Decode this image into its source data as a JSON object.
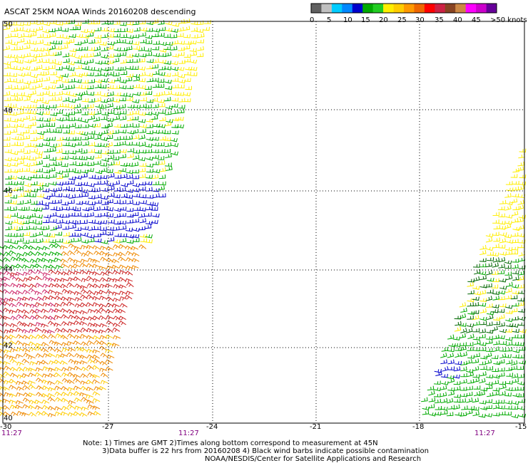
{
  "title": "ASCAT 25KM NOAA Winds 20160208 descending",
  "legend": {
    "labels": [
      "0",
      "5",
      "10",
      "15",
      "20",
      "25",
      "30",
      "35",
      "40",
      "45",
      ">50 knots"
    ],
    "colors": [
      "#606060",
      "#c0c0c0",
      "#00ccff",
      "#0088ff",
      "#0000cc",
      "#00aa00",
      "#22cc22",
      "#ffee00",
      "#ffcc00",
      "#ff9900",
      "#ee6600",
      "#ff0000",
      "#cc2244",
      "#884422",
      "#cc8844",
      "#ff00ff",
      "#cc00cc",
      "#660099"
    ]
  },
  "axes": {
    "lon_ticks": [
      "-30",
      "-27",
      "-24",
      "-21",
      "-18",
      "-15"
    ],
    "lat_ticks": [
      "50",
      "48",
      "46",
      "44",
      "42",
      "40"
    ],
    "pass_times": [
      "11:27",
      "11:27",
      "11:27"
    ]
  },
  "notes": [
    "Note: 1) Times are GMT 2)Times along bottom correspond to measurement at 45N",
    "3)Data buffer is 22 hrs from 20160208 4) Black wind barbs indicate possible contamination",
    "NOAA/NESDIS/Center for Satellite Applications and Research"
  ],
  "wind_colors": {
    "blue": "#0000cc",
    "green": "#00aa00",
    "yellow": "#ffee00",
    "gold": "#ffcc00",
    "orange": "#ee8800",
    "red": "#cc2222",
    "pink": "#cc2266",
    "darkgreen": "#006600"
  }
}
